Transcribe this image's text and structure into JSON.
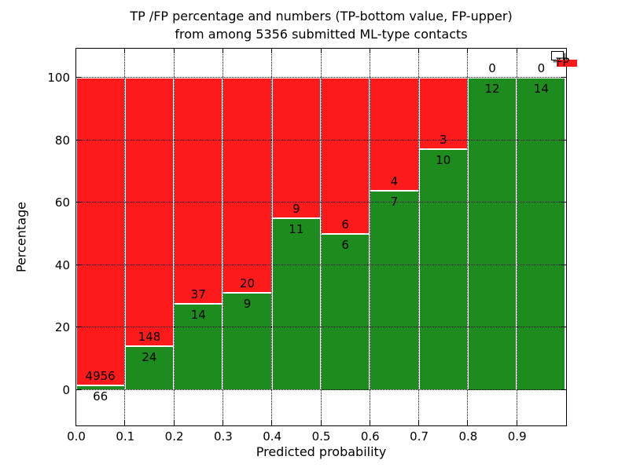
{
  "title": {
    "line1": "TP /FP percentage and numbers (TP-bottom value, FP-upper)",
    "line2": "from among 5356 submitted ML-type contacts"
  },
  "axes": {
    "ylabel": "Percentage",
    "xlabel": "Predicted probability"
  },
  "legend": {
    "position": "upper right",
    "items": [
      {
        "label": "TP",
        "color": "#1e8b1e"
      },
      {
        "label": "FP",
        "color": "#fd1a1a"
      }
    ]
  },
  "colors": {
    "tp_green": "#1e8b1e",
    "fp_red": "#fd1a1a",
    "bar_edge": "#ffffff",
    "grid": "#000000",
    "background": "#ffffff"
  },
  "chart_data": {
    "type": "bar",
    "stacked": true,
    "percent_normalized": true,
    "title": "TP /FP percentage and numbers (TP-bottom value, FP-upper) from among 5356 submitted ML-type contacts",
    "xlabel": "Predicted probability",
    "ylabel": "Percentage",
    "total_contacts": 5356,
    "bin_width": 0.1,
    "bin_starts": [
      0.0,
      0.1,
      0.2,
      0.3,
      0.4,
      0.5,
      0.6,
      0.7,
      0.8,
      0.9
    ],
    "xticks": [
      "0.0",
      "0.1",
      "0.2",
      "0.3",
      "0.4",
      "0.5",
      "0.6",
      "0.7",
      "0.8",
      "0.9"
    ],
    "yticks": [
      0,
      20,
      40,
      60,
      80,
      100
    ],
    "ylim_percent": [
      0,
      100
    ],
    "grid": true,
    "series": [
      {
        "name": "TP",
        "color": "#1e8b1e",
        "counts": [
          66,
          24,
          14,
          9,
          11,
          6,
          7,
          10,
          12,
          14
        ],
        "percent": [
          1.31,
          13.95,
          27.45,
          31.03,
          55.0,
          50.0,
          63.64,
          76.92,
          100.0,
          100.0
        ]
      },
      {
        "name": "FP",
        "color": "#fd1a1a",
        "counts": [
          4956,
          148,
          37,
          20,
          9,
          6,
          4,
          3,
          0,
          0
        ],
        "percent": [
          98.69,
          86.05,
          72.55,
          68.97,
          45.0,
          50.0,
          36.36,
          23.08,
          0.0,
          0.0
        ]
      }
    ],
    "bar_count_labels": {
      "tp": [
        "66",
        "24",
        "14",
        "9",
        "11",
        "6",
        "7",
        "10",
        "12",
        "14"
      ],
      "fp": [
        "4956",
        "148",
        "37",
        "20",
        "9",
        "6",
        "4",
        "3",
        "0",
        "0"
      ],
      "note_label_placement": "TP count below segment top, FP count above segment top"
    }
  }
}
